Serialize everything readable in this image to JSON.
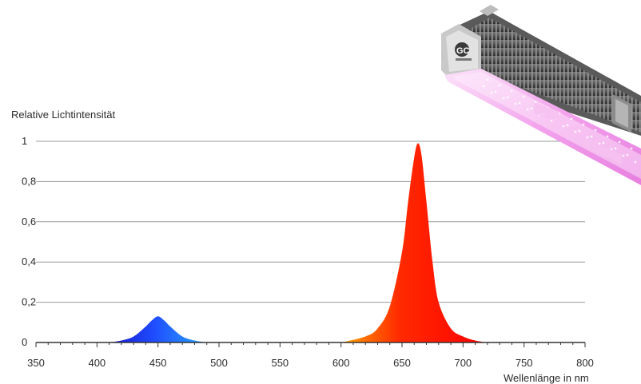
{
  "chart_data": {
    "type": "area",
    "ylabel": "Relative Lichtintensität",
    "xlabel": "Wellenlänge in nm",
    "xlim": [
      350,
      800
    ],
    "ylim": [
      0,
      1
    ],
    "x_ticks": [
      "350",
      "400",
      "450",
      "500",
      "550",
      "600",
      "650",
      "700",
      "750",
      "800"
    ],
    "y_ticks": [
      "0",
      "0,2",
      "0,4",
      "0,6",
      "0,8",
      "1"
    ],
    "grid": true,
    "series": [
      {
        "peak_nm": 450,
        "peak_value": 0.13,
        "color": "#1e3cff",
        "x": [
          410,
          420,
          430,
          440,
          445,
          450,
          455,
          460,
          470,
          480,
          490
        ],
        "y": [
          0.0,
          0.01,
          0.03,
          0.08,
          0.11,
          0.13,
          0.11,
          0.08,
          0.03,
          0.01,
          0.0
        ]
      },
      {
        "peak_nm": 663,
        "peak_value": 0.99,
        "color": "#ff1a00",
        "x": [
          600,
          620,
          630,
          640,
          650,
          655,
          660,
          663,
          666,
          670,
          675,
          680,
          690,
          700,
          710,
          720
        ],
        "y": [
          0.0,
          0.03,
          0.07,
          0.18,
          0.45,
          0.7,
          0.92,
          0.99,
          0.93,
          0.7,
          0.4,
          0.2,
          0.07,
          0.03,
          0.01,
          0.0
        ]
      }
    ],
    "colors": {
      "grid": "#9a9a9a",
      "axis": "#333333",
      "text": "#2b2b2b"
    }
  },
  "product_image": {
    "brand_mark": "GC",
    "description_icon": "led-grow-light-fixture",
    "light_color": "#f4a6ee"
  }
}
